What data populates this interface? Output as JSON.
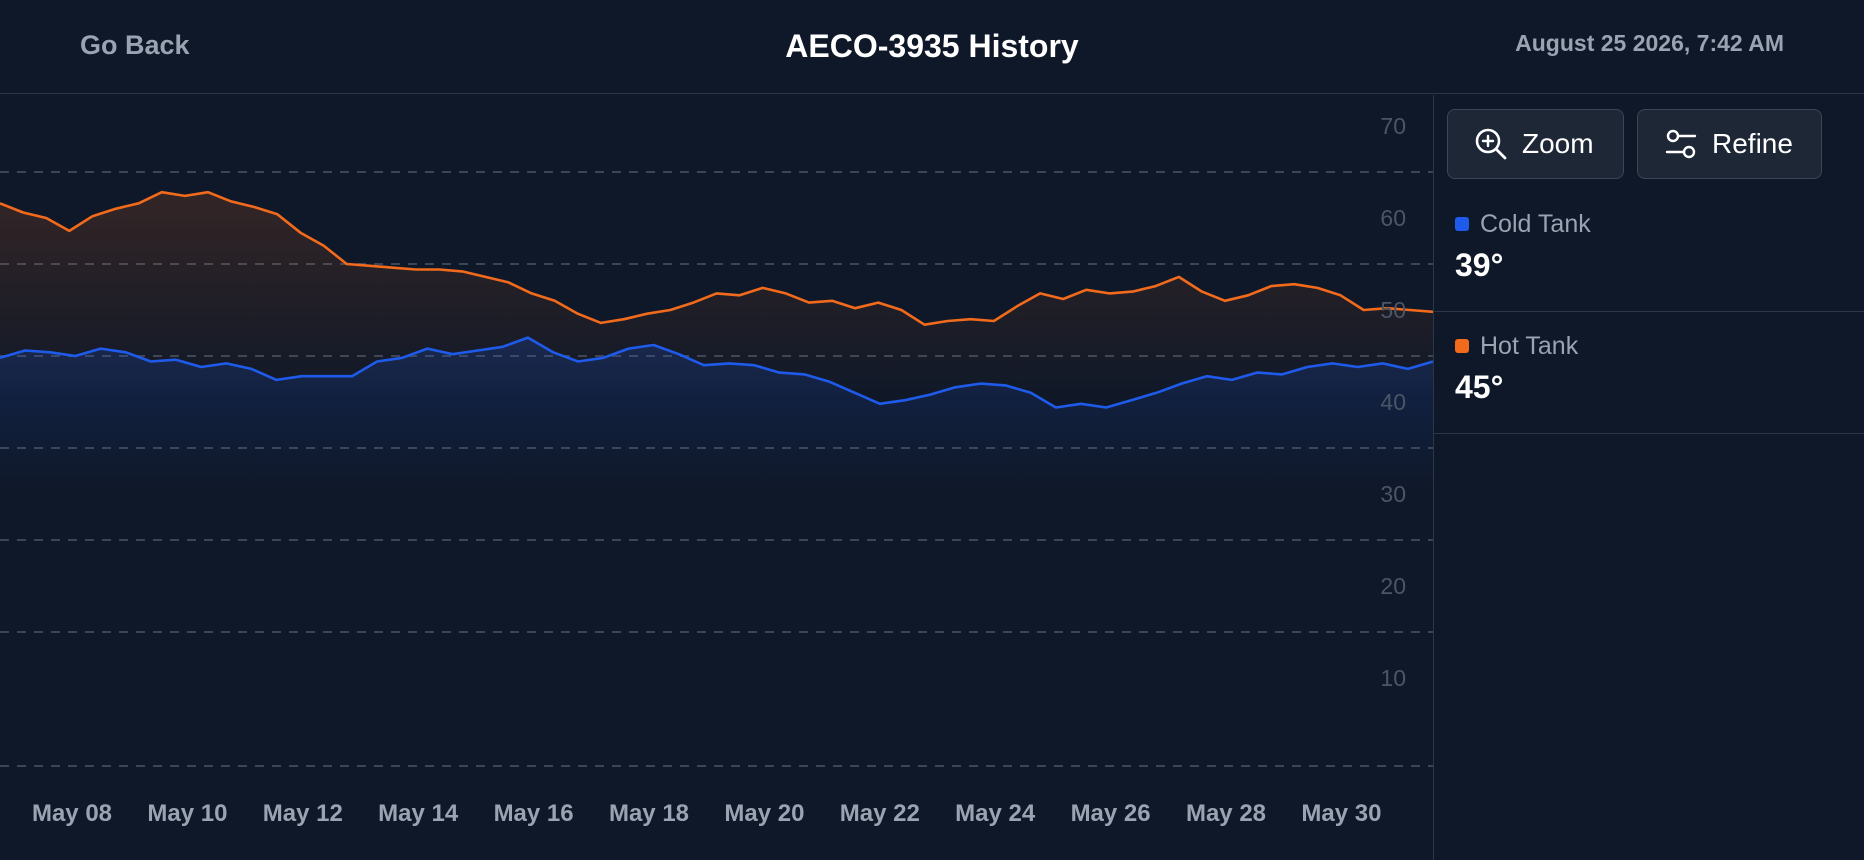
{
  "header": {
    "back_label": "Go Back",
    "title": "AECO-3935 History",
    "timestamp": "August 25 2026, 7:42 AM"
  },
  "toolbar": {
    "zoom_label": "Zoom",
    "zoom_icon": "zoom-in-icon",
    "refine_label": "Refine",
    "refine_icon": "sliders-icon"
  },
  "legend": {
    "cold": {
      "name": "Cold Tank",
      "value": "39°",
      "color": "#1f5bea"
    },
    "hot": {
      "name": "Hot Tank",
      "value": "45°",
      "color": "#f26a1b"
    }
  },
  "chart_data": {
    "type": "line",
    "x_tick_labels": [
      "May 08",
      "May 10",
      "May 12",
      "May 14",
      "May 16",
      "May 18",
      "May 20",
      "May 22",
      "May 24",
      "May 26",
      "May 28",
      "May 30"
    ],
    "y_ticks": [
      10,
      20,
      30,
      40,
      50,
      60,
      70
    ],
    "ylim": [
      0,
      76
    ],
    "grid": true,
    "series": [
      {
        "name": "Hot Tank",
        "color": "#f26a1b",
        "values": [
          61.6,
          60.6,
          60.0,
          58.6,
          60.2,
          61.0,
          61.6,
          62.8,
          62.4,
          62.8,
          61.8,
          61.2,
          60.4,
          58.4,
          57.0,
          55.0,
          54.8,
          54.6,
          54.4,
          54.4,
          54.2,
          53.6,
          53.0,
          51.8,
          51.0,
          49.6,
          48.6,
          49.0,
          49.6,
          50.0,
          50.8,
          51.8,
          51.6,
          52.4,
          51.8,
          50.8,
          51.0,
          50.2,
          50.8,
          50.0,
          48.4,
          48.8,
          49.0,
          48.8,
          50.4,
          51.8,
          51.2,
          52.2,
          51.8,
          52.0,
          52.6,
          53.6,
          52.0,
          51.0,
          51.6,
          52.6,
          52.8,
          52.4,
          51.6,
          50.0,
          50.2,
          50.0,
          49.8
        ]
      },
      {
        "name": "Cold Tank",
        "color": "#1f5bea",
        "values": [
          44.8,
          45.6,
          45.4,
          45.0,
          45.8,
          45.4,
          44.4,
          44.6,
          43.8,
          44.2,
          43.6,
          42.4,
          42.8,
          42.8,
          42.8,
          44.4,
          44.8,
          45.8,
          45.2,
          45.6,
          46.0,
          47.0,
          45.4,
          44.4,
          44.8,
          45.8,
          46.2,
          45.2,
          44.0,
          44.2,
          44.0,
          43.2,
          43.0,
          42.2,
          41.0,
          39.8,
          40.2,
          40.8,
          41.6,
          42.0,
          41.8,
          41.0,
          39.4,
          39.8,
          39.4,
          40.2,
          41.0,
          42.0,
          42.8,
          42.4,
          43.2,
          43.0,
          43.8,
          44.2,
          43.8,
          44.2,
          43.6,
          44.4
        ]
      }
    ]
  }
}
